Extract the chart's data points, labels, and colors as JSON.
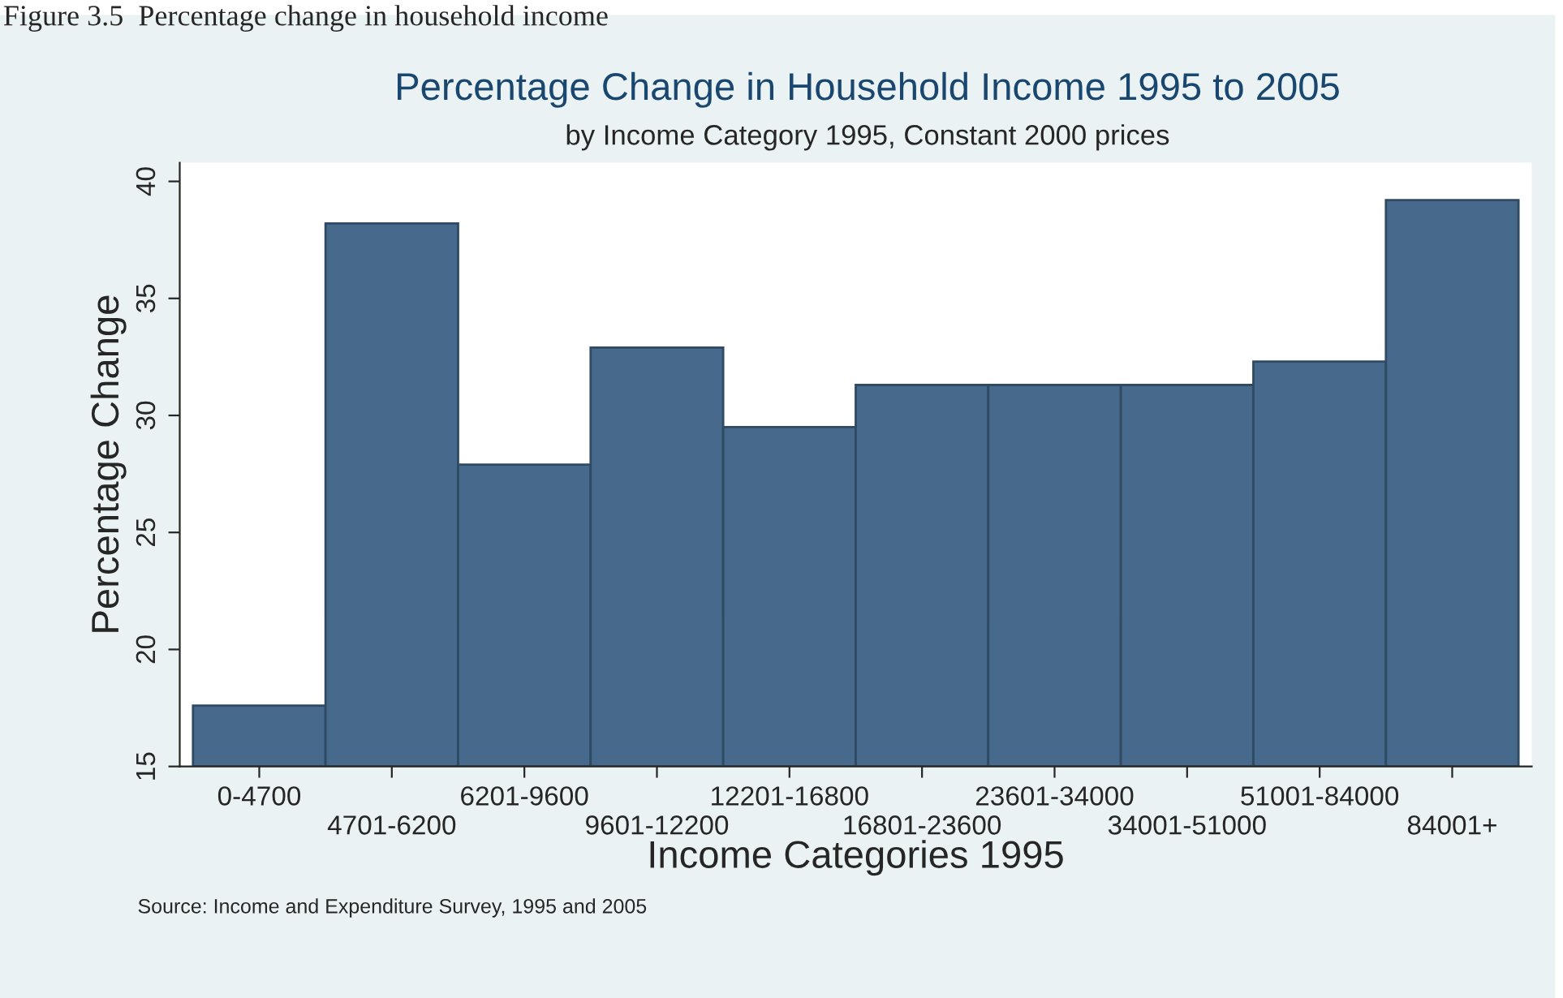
{
  "chart_data": {
    "type": "bar",
    "title": "Percentage Change in Household Income 1995 to 2005",
    "subtitle": "by Income Category 1995, Constant 2000 prices",
    "xlabel": "Income Categories 1995",
    "ylabel": "Percentage Change",
    "categories": [
      "0-4700",
      "4701-6200",
      "6201-9600",
      "9601-12200",
      "12201-16800",
      "16801-23600",
      "23601-34000",
      "34001-51000",
      "51001-84000",
      "84001+"
    ],
    "values": [
      17.6,
      38.2,
      27.9,
      32.9,
      29.5,
      31.3,
      31.3,
      31.3,
      32.3,
      39.2
    ],
    "color": "#476a8c",
    "ylim": [
      15,
      40.8
    ],
    "yticks": [
      15,
      20,
      25,
      30,
      35,
      40
    ],
    "grid": false,
    "annotations": [
      "Figure 3.5  Percentage change in household income",
      "Source: Income and Expenditure Survey, 1995 and 2005"
    ]
  }
}
